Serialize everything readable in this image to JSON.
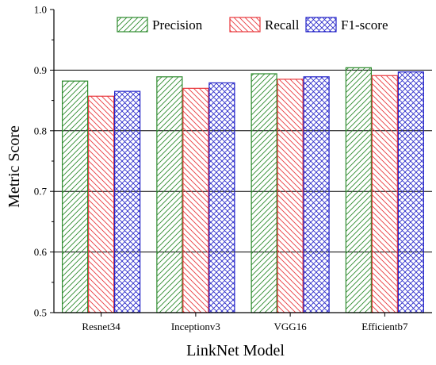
{
  "chart_data": {
    "type": "bar",
    "title": "",
    "xlabel": "LinkNet Model",
    "ylabel": "Metric Score",
    "categories": [
      "Resnet34",
      "Inceptionv3",
      "VGG16",
      "Efficientb7"
    ],
    "series": [
      {
        "name": "Precision",
        "values": [
          0.882,
          0.889,
          0.894,
          0.904
        ],
        "color": "#2e8b2e",
        "pattern": "diagonal-up"
      },
      {
        "name": "Recall",
        "values": [
          0.857,
          0.87,
          0.885,
          0.891
        ],
        "color": "#e8383d",
        "pattern": "diagonal-down"
      },
      {
        "name": "F1-score",
        "values": [
          0.865,
          0.879,
          0.889,
          0.897
        ],
        "color": "#2323c8",
        "pattern": "crosshatch"
      }
    ],
    "ylim": [
      0.5,
      1.0
    ],
    "yticks": [
      "0.5",
      "0.6",
      "0.7",
      "0.8",
      "0.9",
      "1.0"
    ],
    "grid": "horizontal",
    "legend_position": "top-right"
  }
}
